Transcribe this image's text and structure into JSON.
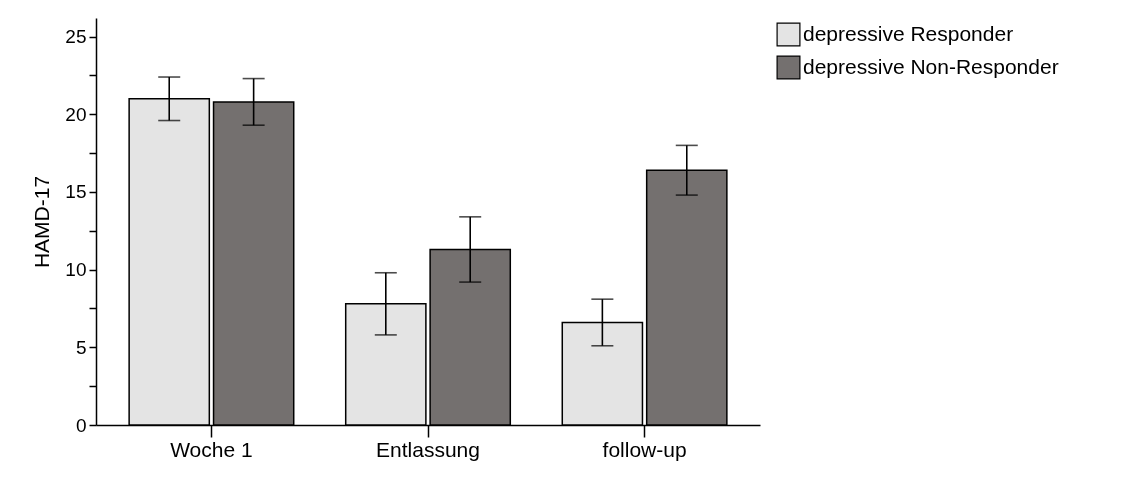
{
  "chart_data": {
    "type": "bar",
    "ylabel": "HAMD-17",
    "categories": [
      "Woche 1",
      "Entlassung",
      "follow-up"
    ],
    "series": [
      {
        "name": "depressive Responder",
        "color": "#e4e4e4",
        "values": [
          21.0,
          7.8,
          6.6
        ],
        "errors": [
          1.4,
          2.0,
          1.5
        ]
      },
      {
        "name": "depressive Non-Responder",
        "color": "#74706f",
        "values": [
          20.8,
          11.3,
          16.4
        ],
        "errors": [
          1.5,
          2.1,
          1.6
        ]
      }
    ],
    "ylim": [
      0,
      26.2
    ],
    "yticks": [
      0,
      {
        "value": 2.5,
        "label": null
      },
      5,
      {
        "value": 7.5,
        "label": null
      },
      10,
      {
        "value": 12.5,
        "label": null
      },
      15,
      {
        "value": 17.5,
        "label": null
      },
      20,
      {
        "value": 22.5,
        "label": null
      },
      25
    ],
    "grid": false,
    "legend": "top right"
  }
}
